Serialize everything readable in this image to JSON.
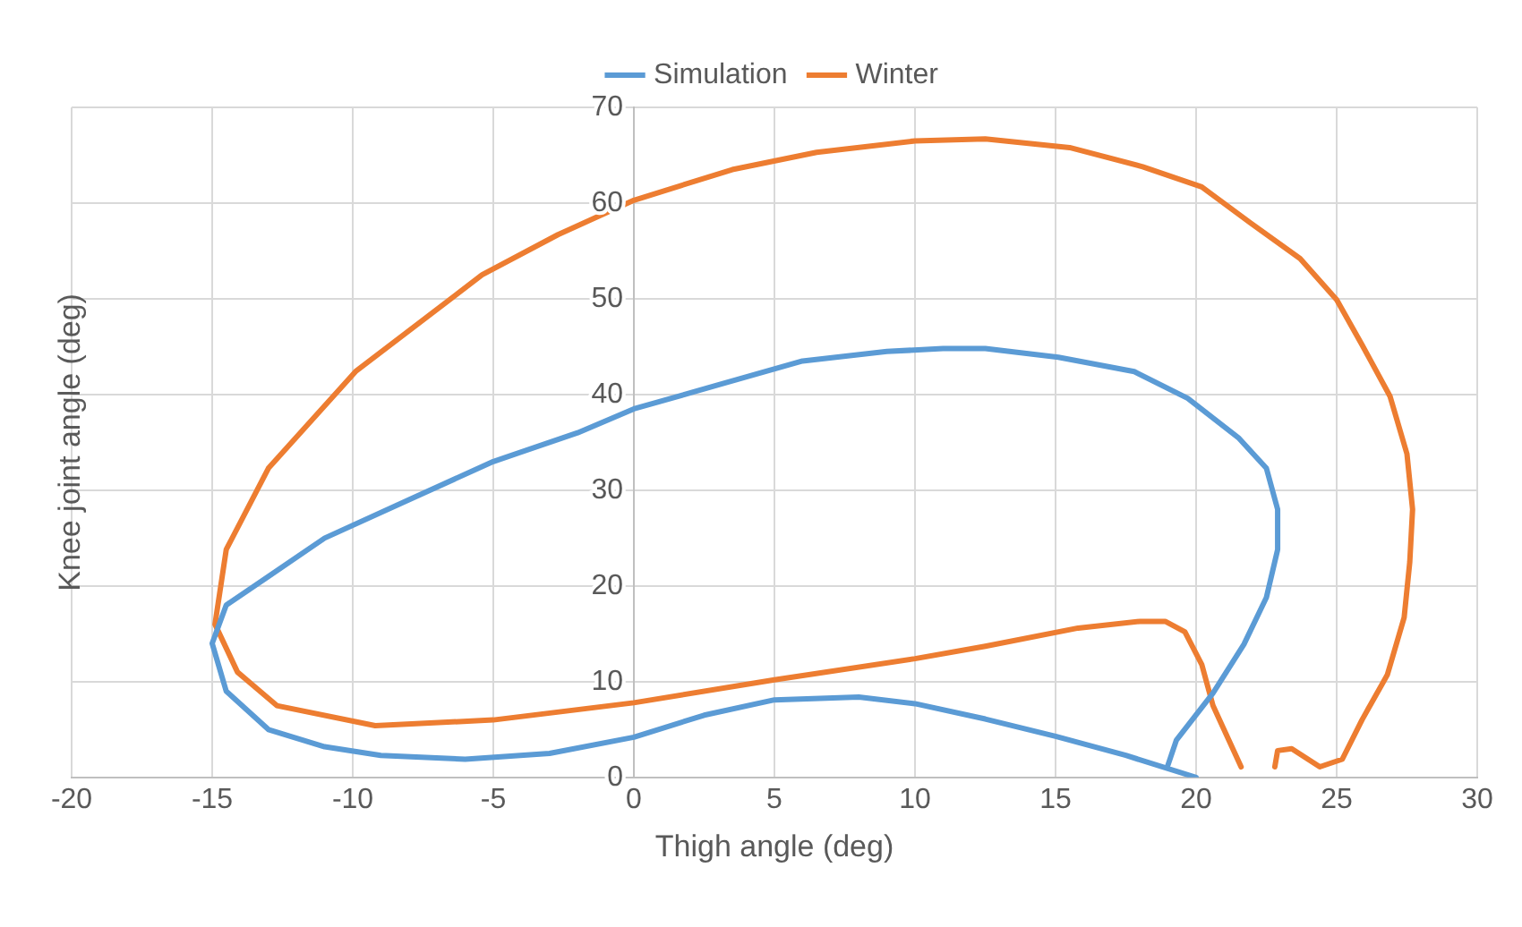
{
  "chart_data": {
    "type": "line",
    "xlabel": "Thigh angle (deg)",
    "ylabel": "Knee joint angle (deg)",
    "xlim": [
      -20,
      30
    ],
    "xticks": [
      -20,
      -15,
      -10,
      -5,
      0,
      5,
      10,
      15,
      20,
      25,
      30
    ],
    "ylim": [
      0,
      70
    ],
    "yticks": [
      0,
      10,
      20,
      30,
      40,
      50,
      60,
      70
    ],
    "grid": true,
    "legend": "top",
    "marker": "none",
    "line_style": "solid",
    "series": [
      {
        "name": "Simulation",
        "color": "#5b9bd5",
        "x": [
          20,
          17.5,
          15,
          12.5,
          10,
          8,
          5,
          2.5,
          0,
          -3,
          -6,
          -9,
          -11,
          -13,
          -14.5,
          -15,
          -14.5,
          -13,
          -11,
          -8,
          -5,
          -2,
          0,
          3,
          6,
          9,
          11,
          12.5,
          15.1,
          17.8,
          19.7,
          21.5,
          22.5,
          22.9,
          22.9,
          22.5,
          21.7,
          20.6,
          19.3,
          19
        ],
        "values": [
          0,
          2.3,
          4.3,
          6.1,
          7.7,
          8.4,
          8.1,
          6.5,
          4.2,
          2.5,
          1.9,
          2.3,
          3.2,
          5,
          9,
          14,
          18,
          21,
          25,
          29,
          33,
          36,
          38.5,
          41,
          43.5,
          44.5,
          44.8,
          44.8,
          43.9,
          42.4,
          39.6,
          35.5,
          32.3,
          28,
          23.8,
          18.8,
          13.9,
          8.8,
          3.9,
          1.3
        ]
      },
      {
        "name": "Winter",
        "color": "#ed7d31",
        "x": [
          21.6,
          20.6,
          20.2,
          19.6,
          18.9,
          18,
          15.8,
          12.5,
          10,
          5,
          0,
          -5,
          -9.2,
          -12.7,
          -14.1,
          -14.9,
          -14.5,
          -13,
          -9.9,
          -5.4,
          -2.7,
          0,
          3.5,
          6.5,
          10,
          12.5,
          15.5,
          18.1,
          20.2,
          21.9,
          23.7,
          25,
          25.9,
          26.9,
          27.5,
          27.7,
          27.6,
          27.4,
          26.8,
          25.9,
          25.2,
          24.4,
          23.4,
          22.9,
          22.8
        ],
        "values": [
          1.1,
          7.5,
          11.8,
          15.2,
          16.3,
          16.3,
          15.6,
          13.7,
          12.4,
          10.2,
          7.8,
          6,
          5.4,
          7.5,
          11,
          16,
          23.8,
          32.3,
          42.4,
          52.5,
          56.7,
          60.3,
          63.5,
          65.3,
          66.5,
          66.7,
          65.8,
          63.8,
          61.7,
          58,
          54.2,
          49.9,
          45.2,
          39.8,
          33.8,
          28,
          22.5,
          16.7,
          10.7,
          6,
          1.9,
          1.1,
          3,
          2.8,
          1.1
        ]
      }
    ]
  }
}
